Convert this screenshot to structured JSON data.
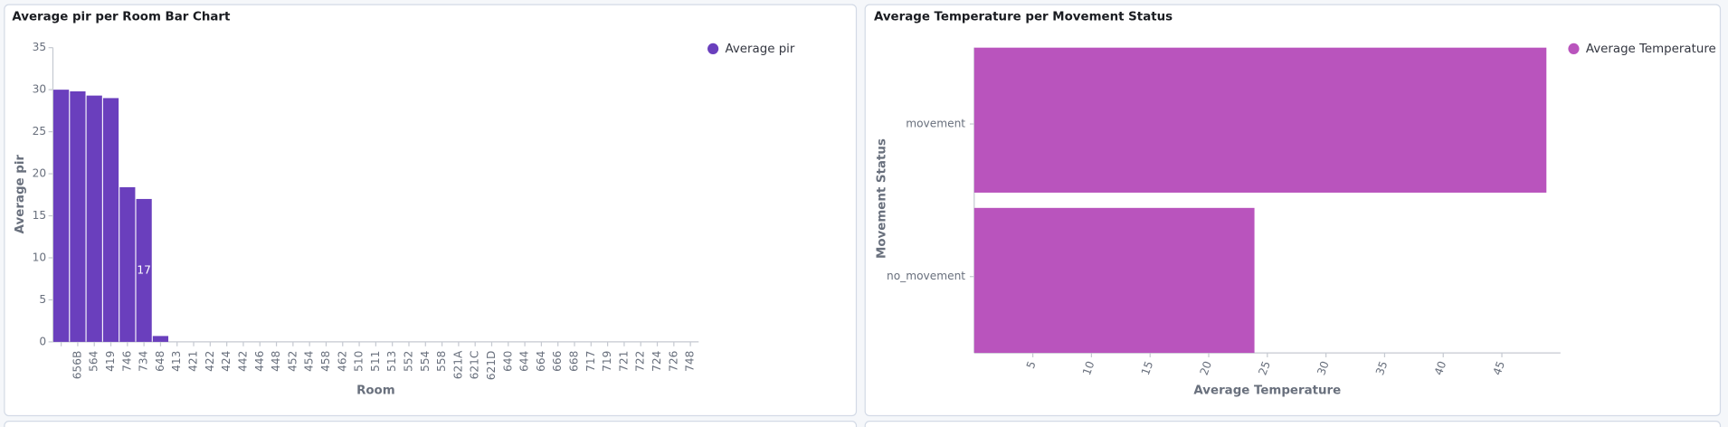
{
  "chart_data": [
    {
      "type": "bar",
      "title": "Average pir per Room Bar Chart",
      "x_label": "Room",
      "y_label": "Average pir",
      "categories": [
        null,
        "656B",
        "564",
        "419",
        "746",
        "734",
        "648",
        "413",
        "421",
        "422",
        "424",
        "442",
        "446",
        "448",
        "452",
        "454",
        "458",
        "462",
        "510",
        "511",
        "513",
        "552",
        "554",
        "558",
        "621A",
        "621C",
        "621D",
        "640",
        "644",
        "664",
        "666",
        "668",
        "717",
        "719",
        "721",
        "722",
        "724",
        "726",
        "748"
      ],
      "series": [
        {
          "name": "Average pir",
          "color": "#6a3fbd",
          "values": [
            30,
            29.8,
            29.3,
            29,
            18.4,
            17,
            0.7,
            0,
            0,
            0,
            0,
            0,
            0,
            0,
            0,
            0,
            0,
            0,
            0,
            0,
            0,
            0,
            0,
            0,
            0,
            0,
            0,
            0,
            0,
            0,
            0,
            0,
            0,
            0,
            0,
            0,
            0,
            0,
            0
          ]
        }
      ],
      "ylim": [
        0,
        35
      ],
      "yticks": [
        0,
        5,
        10,
        15,
        20,
        25,
        30,
        35
      ],
      "legend": "top-right",
      "grid": false
    },
    {
      "type": "hbar",
      "title": "Average Temperature per Movement Status",
      "x_label": "Average Temperature",
      "y_label": "Movement Status",
      "categories": [
        "movement",
        "no_movement"
      ],
      "series": [
        {
          "name": "Average Temperature",
          "color": "#b954bd",
          "values": [
            48.8,
            23.9
          ]
        }
      ],
      "xlim": [
        0,
        50
      ],
      "xticks": [
        5,
        10,
        15,
        20,
        25,
        30,
        35,
        40,
        45
      ],
      "legend": "top-right",
      "grid": false
    }
  ]
}
